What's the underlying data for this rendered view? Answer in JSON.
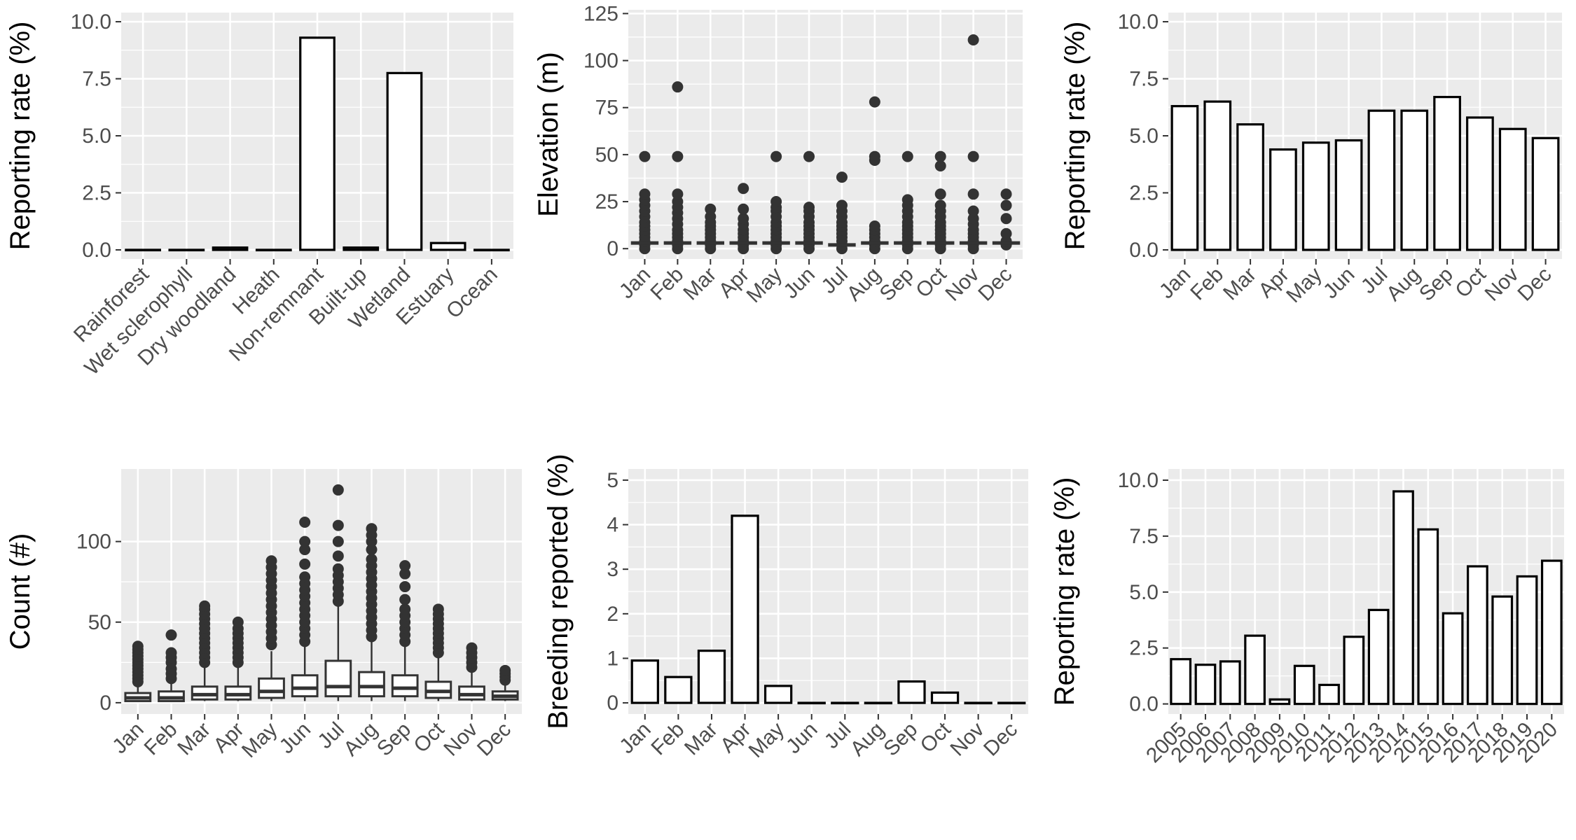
{
  "colors": {
    "panel_background": "#ebebeb",
    "grid": "#ffffff",
    "bar_fill": "#ffffff",
    "bar_outline": "#000000",
    "points": "#333333",
    "text": "#4d4d4d"
  },
  "chart_data": [
    {
      "type": "bar",
      "categories": [
        "Rainforest",
        "Wet sclerophyll",
        "Dry woodland",
        "Heath",
        "Non-remnant",
        "Built-up",
        "Wetland",
        "Estuary",
        "Ocean"
      ],
      "values": [
        0.0,
        0.0,
        0.1,
        0.0,
        9.3,
        0.1,
        7.75,
        0.3,
        0.0
      ],
      "title": "",
      "xlabel": "",
      "ylabel": "Reporting rate (%)",
      "ylim": [
        -0.4,
        10.4
      ],
      "yticks": [
        0.0,
        2.5,
        5.0,
        7.5,
        10.0
      ],
      "ytick_labels": [
        "0.0",
        "2.5",
        "5.0",
        "7.5",
        "10.0"
      ],
      "grid": true
    },
    {
      "type": "scatter",
      "categories": [
        "Jan",
        "Feb",
        "Mar",
        "Apr",
        "May",
        "Jun",
        "Jul",
        "Aug",
        "Sep",
        "Oct",
        "Nov",
        "Dec"
      ],
      "medians": [
        3,
        3,
        3,
        3,
        3,
        3,
        2,
        3,
        3,
        3,
        3,
        3
      ],
      "points": [
        [
          0,
          2,
          4,
          6,
          8,
          10,
          12,
          14,
          17,
          20,
          23,
          26,
          29,
          49
        ],
        [
          0,
          2,
          4,
          6,
          8,
          10,
          13,
          16,
          19,
          22,
          25,
          29,
          49,
          86
        ],
        [
          0,
          2,
          4,
          6,
          8,
          10,
          12,
          14,
          17,
          21
        ],
        [
          0,
          2,
          4,
          6,
          8,
          10,
          13,
          16,
          21,
          32
        ],
        [
          0,
          2,
          4,
          6,
          8,
          10,
          12,
          14,
          17,
          20,
          22,
          25,
          49
        ],
        [
          0,
          2,
          4,
          6,
          8,
          10,
          12,
          14,
          17,
          20,
          22,
          49
        ],
        [
          0,
          2,
          4,
          6,
          8,
          10,
          12,
          14,
          17,
          20,
          23,
          38
        ],
        [
          0,
          2,
          4,
          6,
          8,
          10,
          12,
          47,
          49,
          78
        ],
        [
          0,
          2,
          4,
          6,
          8,
          10,
          12,
          14,
          17,
          20,
          23,
          26,
          49
        ],
        [
          0,
          2,
          4,
          6,
          8,
          10,
          12,
          14,
          17,
          20,
          23,
          29,
          44,
          49
        ],
        [
          0,
          2,
          4,
          6,
          8,
          10,
          13,
          16,
          20,
          29,
          49,
          111
        ],
        [
          2,
          4,
          8,
          16,
          23,
          29
        ]
      ],
      "title": "",
      "xlabel": "",
      "ylabel": "Elevation (m)",
      "ylim": [
        -5.5,
        127
      ],
      "yticks": [
        0,
        25,
        50,
        75,
        100,
        125
      ],
      "ytick_labels": [
        "0",
        "25",
        "50",
        "75",
        "100",
        "125"
      ],
      "grid": true
    },
    {
      "type": "bar",
      "categories": [
        "Jan",
        "Feb",
        "Mar",
        "Apr",
        "May",
        "Jun",
        "Jul",
        "Aug",
        "Sep",
        "Oct",
        "Nov",
        "Dec"
      ],
      "values": [
        6.3,
        6.5,
        5.5,
        4.4,
        4.7,
        4.8,
        6.1,
        6.1,
        6.7,
        5.8,
        5.3,
        4.9
      ],
      "title": "",
      "xlabel": "",
      "ylabel": "Reporting rate (%)",
      "ylim": [
        -0.4,
        10.4
      ],
      "yticks": [
        0.0,
        2.5,
        5.0,
        7.5,
        10.0
      ],
      "ytick_labels": [
        "0.0",
        "2.5",
        "5.0",
        "7.5",
        "10.0"
      ],
      "grid": true
    },
    {
      "type": "box",
      "categories": [
        "Jan",
        "Feb",
        "Mar",
        "Apr",
        "May",
        "Jun",
        "Jul",
        "Aug",
        "Sep",
        "Oct",
        "Nov",
        "Dec"
      ],
      "boxes": [
        {
          "q1": 1,
          "median": 3,
          "q3": 6,
          "whisker_low": 1,
          "whisker_high": 12,
          "outliers": [
            13,
            15,
            17,
            19,
            21,
            23,
            25,
            27,
            29,
            31,
            33,
            35
          ]
        },
        {
          "q1": 1,
          "median": 3,
          "q3": 7,
          "whisker_low": 1,
          "whisker_high": 13,
          "outliers": [
            15,
            18,
            21,
            25,
            28,
            31,
            42
          ]
        },
        {
          "q1": 2,
          "median": 5,
          "q3": 10,
          "whisker_low": 1,
          "whisker_high": 22,
          "outliers": [
            25,
            28,
            31,
            34,
            37,
            40,
            43,
            46,
            49,
            52,
            55,
            58,
            60
          ]
        },
        {
          "q1": 2,
          "median": 5,
          "q3": 10,
          "whisker_low": 1,
          "whisker_high": 22,
          "outliers": [
            25,
            28,
            31,
            34,
            37,
            40,
            43,
            46,
            50
          ]
        },
        {
          "q1": 3,
          "median": 7,
          "q3": 15,
          "whisker_low": 1,
          "whisker_high": 32,
          "outliers": [
            36,
            40,
            44,
            48,
            52,
            56,
            60,
            64,
            68,
            72,
            76,
            80,
            84,
            88
          ]
        },
        {
          "q1": 4,
          "median": 9,
          "q3": 17,
          "whisker_low": 1,
          "whisker_high": 35,
          "outliers": [
            38,
            42,
            46,
            50,
            54,
            58,
            62,
            66,
            70,
            74,
            78,
            86,
            95,
            100,
            112
          ]
        },
        {
          "q1": 4,
          "median": 10,
          "q3": 26,
          "whisker_low": 1,
          "whisker_high": 60,
          "outliers": [
            63,
            67,
            71,
            75,
            79,
            83,
            91,
            100,
            110,
            132
          ]
        },
        {
          "q1": 4,
          "median": 10,
          "q3": 19,
          "whisker_low": 1,
          "whisker_high": 38,
          "outliers": [
            41,
            45,
            49,
            53,
            57,
            61,
            65,
            69,
            73,
            77,
            81,
            85,
            89,
            95,
            100,
            104,
            108
          ]
        },
        {
          "q1": 4,
          "median": 9,
          "q3": 17,
          "whisker_low": 1,
          "whisker_high": 35,
          "outliers": [
            38,
            42,
            46,
            50,
            54,
            58,
            64,
            72,
            80,
            85
          ]
        },
        {
          "q1": 3,
          "median": 7,
          "q3": 13,
          "whisker_low": 1,
          "whisker_high": 28,
          "outliers": [
            31,
            34,
            37,
            40,
            43,
            46,
            49,
            52,
            55,
            58
          ]
        },
        {
          "q1": 2,
          "median": 5,
          "q3": 10,
          "whisker_low": 1,
          "whisker_high": 20,
          "outliers": [
            22,
            25,
            28,
            31,
            34
          ]
        },
        {
          "q1": 2,
          "median": 4,
          "q3": 7,
          "whisker_low": 1,
          "whisker_high": 12,
          "outliers": [
            14,
            16,
            18,
            20
          ]
        }
      ],
      "title": "",
      "xlabel": "",
      "ylabel": "Count (#)",
      "ylim": [
        -7,
        145
      ],
      "yticks": [
        0,
        50,
        100
      ],
      "ytick_labels": [
        "0",
        "50",
        "100"
      ],
      "grid": true
    },
    {
      "type": "bar",
      "categories": [
        "Jan",
        "Feb",
        "Mar",
        "Apr",
        "May",
        "Jun",
        "Jul",
        "Aug",
        "Sep",
        "Oct",
        "Nov",
        "Dec"
      ],
      "values": [
        0.95,
        0.58,
        1.17,
        4.2,
        0.38,
        0.0,
        0.0,
        0.0,
        0.48,
        0.23,
        0.0,
        0.0
      ],
      "title": "",
      "xlabel": "",
      "ylabel": "Breeding reported (%)",
      "ylim": [
        -0.25,
        5.25
      ],
      "yticks": [
        0,
        1,
        2,
        3,
        4,
        5
      ],
      "ytick_labels": [
        "0",
        "1",
        "2",
        "3",
        "4",
        "5"
      ],
      "grid": true
    },
    {
      "type": "bar",
      "categories": [
        "2005",
        "2006",
        "2007",
        "2008",
        "2009",
        "2010",
        "2011",
        "2012",
        "2013",
        "2014",
        "2015",
        "2016",
        "2017",
        "2018",
        "2019",
        "2020"
      ],
      "values": [
        2.0,
        1.75,
        1.9,
        3.05,
        0.2,
        1.7,
        0.85,
        3.0,
        4.2,
        9.5,
        7.8,
        4.05,
        6.15,
        4.8,
        5.7,
        6.4
      ],
      "title": "",
      "xlabel": "",
      "ylabel": "Reporting rate (%)",
      "ylim": [
        -0.45,
        10.5
      ],
      "yticks": [
        0.0,
        2.5,
        5.0,
        7.5,
        10.0
      ],
      "ytick_labels": [
        "0.0",
        "2.5",
        "5.0",
        "7.5",
        "10.0"
      ],
      "grid": true
    }
  ]
}
